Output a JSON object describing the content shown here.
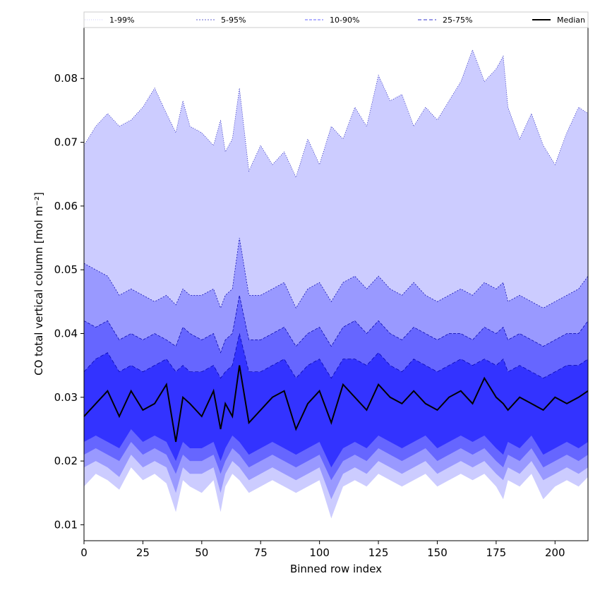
{
  "chart_data": {
    "type": "area",
    "xlabel": "Binned row index",
    "ylabel": "CO total vertical column [mol m⁻²]",
    "xlim": [
      0,
      214
    ],
    "ylim": [
      0.0075,
      0.088
    ],
    "xticks": [
      0,
      25,
      50,
      75,
      100,
      125,
      150,
      175,
      200
    ],
    "yticks": [
      0.01,
      0.02,
      0.03,
      0.04,
      0.05,
      0.06,
      0.07,
      0.08
    ],
    "ytick_labels": [
      "0.01",
      "0.02",
      "0.03",
      "0.04",
      "0.05",
      "0.06",
      "0.07",
      "0.08"
    ],
    "legend_position": "top, above plot",
    "x": [
      0,
      5,
      10,
      15,
      20,
      25,
      30,
      35,
      39,
      42,
      45,
      50,
      55,
      58,
      60,
      63,
      66,
      70,
      75,
      80,
      85,
      90,
      95,
      100,
      105,
      110,
      115,
      120,
      125,
      130,
      135,
      140,
      145,
      150,
      155,
      160,
      165,
      170,
      175,
      178,
      180,
      185,
      190,
      195,
      200,
      205,
      210,
      214
    ],
    "series": [
      {
        "name": "1-99%",
        "color": "#ccccff",
        "lower": [
          0.016,
          0.018,
          0.017,
          0.0155,
          0.019,
          0.017,
          0.018,
          0.0165,
          0.012,
          0.017,
          0.016,
          0.015,
          0.017,
          0.012,
          0.016,
          0.018,
          0.017,
          0.015,
          0.016,
          0.017,
          0.016,
          0.015,
          0.016,
          0.017,
          0.011,
          0.016,
          0.017,
          0.016,
          0.018,
          0.017,
          0.016,
          0.017,
          0.018,
          0.016,
          0.017,
          0.018,
          0.017,
          0.018,
          0.016,
          0.014,
          0.017,
          0.016,
          0.018,
          0.014,
          0.016,
          0.017,
          0.016,
          0.0175
        ],
        "upper": [
          0.0695,
          0.0725,
          0.0745,
          0.0725,
          0.0735,
          0.0755,
          0.0785,
          0.0745,
          0.0715,
          0.0765,
          0.0725,
          0.0715,
          0.0695,
          0.0735,
          0.0685,
          0.0705,
          0.0785,
          0.0655,
          0.0695,
          0.0665,
          0.0685,
          0.0645,
          0.0705,
          0.0665,
          0.0725,
          0.0705,
          0.0755,
          0.0725,
          0.0805,
          0.0765,
          0.0775,
          0.0725,
          0.0755,
          0.0735,
          0.0765,
          0.0795,
          0.0845,
          0.0795,
          0.0815,
          0.0835,
          0.0755,
          0.0705,
          0.0745,
          0.0695,
          0.0665,
          0.0715,
          0.0755,
          0.0745
        ]
      },
      {
        "name": "5-95%",
        "color": "#9999ff",
        "lower": [
          0.019,
          0.02,
          0.019,
          0.0175,
          0.021,
          0.019,
          0.02,
          0.019,
          0.015,
          0.019,
          0.018,
          0.018,
          0.019,
          0.015,
          0.018,
          0.02,
          0.019,
          0.017,
          0.018,
          0.019,
          0.018,
          0.017,
          0.018,
          0.019,
          0.014,
          0.018,
          0.019,
          0.018,
          0.02,
          0.019,
          0.018,
          0.019,
          0.02,
          0.018,
          0.019,
          0.02,
          0.019,
          0.02,
          0.018,
          0.017,
          0.019,
          0.018,
          0.02,
          0.017,
          0.018,
          0.019,
          0.018,
          0.019
        ],
        "upper": [
          0.051,
          0.05,
          0.049,
          0.046,
          0.047,
          0.046,
          0.045,
          0.046,
          0.0445,
          0.047,
          0.046,
          0.046,
          0.047,
          0.044,
          0.046,
          0.047,
          0.055,
          0.046,
          0.046,
          0.047,
          0.048,
          0.044,
          0.047,
          0.048,
          0.045,
          0.048,
          0.049,
          0.047,
          0.049,
          0.047,
          0.046,
          0.048,
          0.046,
          0.045,
          0.046,
          0.047,
          0.046,
          0.048,
          0.047,
          0.048,
          0.045,
          0.046,
          0.045,
          0.044,
          0.045,
          0.046,
          0.047,
          0.049
        ]
      },
      {
        "name": "10-90%",
        "color": "#6666ff",
        "lower": [
          0.021,
          0.022,
          0.021,
          0.02,
          0.023,
          0.021,
          0.022,
          0.021,
          0.018,
          0.021,
          0.02,
          0.02,
          0.021,
          0.018,
          0.02,
          0.022,
          0.021,
          0.019,
          0.02,
          0.021,
          0.02,
          0.019,
          0.02,
          0.021,
          0.017,
          0.02,
          0.021,
          0.02,
          0.022,
          0.021,
          0.02,
          0.021,
          0.022,
          0.02,
          0.021,
          0.022,
          0.021,
          0.022,
          0.02,
          0.019,
          0.021,
          0.02,
          0.022,
          0.019,
          0.02,
          0.021,
          0.02,
          0.021
        ],
        "upper": [
          0.042,
          0.041,
          0.042,
          0.039,
          0.04,
          0.039,
          0.04,
          0.039,
          0.038,
          0.041,
          0.04,
          0.039,
          0.04,
          0.037,
          0.039,
          0.04,
          0.046,
          0.039,
          0.039,
          0.04,
          0.041,
          0.038,
          0.04,
          0.041,
          0.038,
          0.041,
          0.042,
          0.04,
          0.042,
          0.04,
          0.039,
          0.041,
          0.04,
          0.039,
          0.04,
          0.04,
          0.039,
          0.041,
          0.04,
          0.041,
          0.039,
          0.04,
          0.039,
          0.038,
          0.039,
          0.04,
          0.04,
          0.042
        ]
      },
      {
        "name": "25-75%",
        "color": "#3333ff",
        "lower": [
          0.023,
          0.024,
          0.023,
          0.022,
          0.025,
          0.023,
          0.024,
          0.023,
          0.02,
          0.023,
          0.022,
          0.022,
          0.023,
          0.02,
          0.022,
          0.024,
          0.023,
          0.021,
          0.022,
          0.023,
          0.022,
          0.021,
          0.022,
          0.023,
          0.019,
          0.022,
          0.023,
          0.022,
          0.024,
          0.023,
          0.022,
          0.023,
          0.024,
          0.022,
          0.023,
          0.024,
          0.023,
          0.024,
          0.022,
          0.021,
          0.023,
          0.022,
          0.024,
          0.021,
          0.022,
          0.023,
          0.022,
          0.023
        ],
        "upper": [
          0.034,
          0.036,
          0.037,
          0.034,
          0.035,
          0.034,
          0.035,
          0.036,
          0.034,
          0.035,
          0.034,
          0.034,
          0.035,
          0.033,
          0.034,
          0.035,
          0.04,
          0.034,
          0.034,
          0.035,
          0.036,
          0.033,
          0.035,
          0.036,
          0.033,
          0.036,
          0.036,
          0.035,
          0.037,
          0.035,
          0.034,
          0.036,
          0.035,
          0.034,
          0.035,
          0.036,
          0.035,
          0.036,
          0.035,
          0.036,
          0.034,
          0.035,
          0.034,
          0.033,
          0.034,
          0.035,
          0.035,
          0.036
        ]
      },
      {
        "name": "Median",
        "color": "#000000",
        "values": [
          0.027,
          0.029,
          0.031,
          0.027,
          0.031,
          0.028,
          0.029,
          0.032,
          0.023,
          0.03,
          0.029,
          0.027,
          0.031,
          0.025,
          0.029,
          0.027,
          0.035,
          0.026,
          0.028,
          0.03,
          0.031,
          0.025,
          0.029,
          0.031,
          0.026,
          0.032,
          0.03,
          0.028,
          0.032,
          0.03,
          0.029,
          0.031,
          0.029,
          0.028,
          0.03,
          0.031,
          0.029,
          0.033,
          0.03,
          0.029,
          0.028,
          0.03,
          0.029,
          0.028,
          0.03,
          0.029,
          0.03,
          0.031
        ]
      }
    ]
  }
}
